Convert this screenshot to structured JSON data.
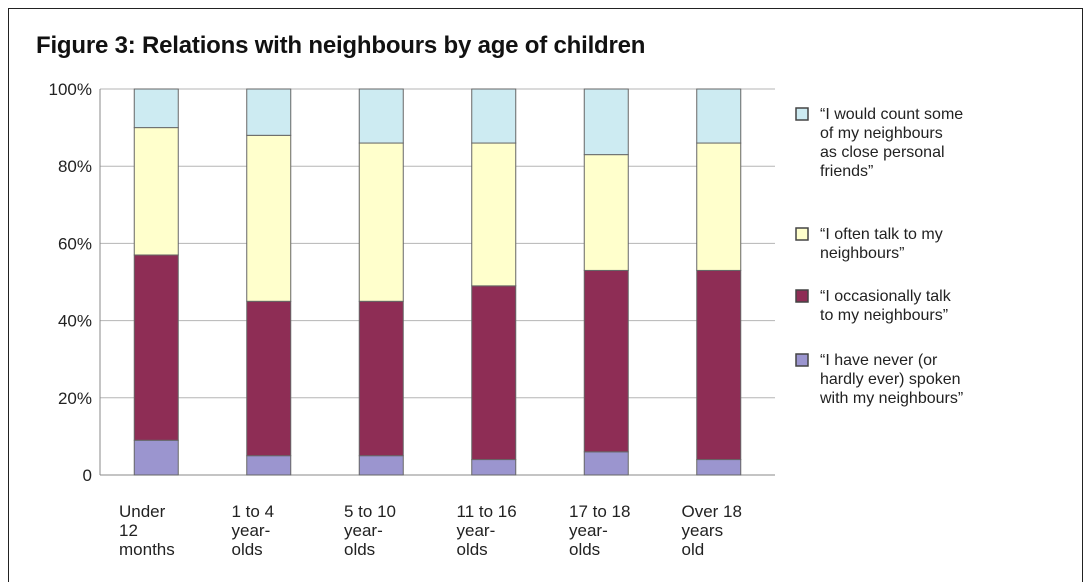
{
  "title": "Figure 3: Relations with neighbours by age of children",
  "colors": {
    "never": "#9b95cf",
    "occasionally": "#8e2d55",
    "often": "#ffffcc",
    "close_friends": "#cdebf2",
    "grid": "#b5b5b5",
    "stroke": "#666666"
  },
  "chart_data": {
    "type": "bar",
    "stacked": true,
    "categories": [
      [
        "Under",
        "12",
        "months"
      ],
      [
        "1 to 4",
        "year-",
        "olds"
      ],
      [
        "5 to 10",
        "year-",
        "olds"
      ],
      [
        "11 to 16",
        "year-",
        "olds"
      ],
      [
        "17 to 18",
        "year-",
        "olds"
      ],
      [
        "Over 18",
        "years",
        "old"
      ]
    ],
    "series": [
      {
        "key": "never",
        "name": "“I have never (or hardly ever) spoken with my neighbours”",
        "legend_lines": [
          "“I have never (or",
          "hardly ever) spoken",
          "with my neighbours”"
        ],
        "values": [
          9,
          5,
          5,
          4,
          6,
          4
        ]
      },
      {
        "key": "occasionally",
        "name": "“I occasionally talk to my neighbours”",
        "legend_lines": [
          "“I occasionally talk",
          "to my neighbours”"
        ],
        "values": [
          48,
          40,
          40,
          45,
          47,
          49
        ]
      },
      {
        "key": "often",
        "name": "“I often talk to my neighbours”",
        "legend_lines": [
          "“I often talk to my",
          "neighbours”"
        ],
        "values": [
          33,
          43,
          41,
          37,
          30,
          33
        ]
      },
      {
        "key": "close_friends",
        "name": "“I would count some of my neighbours as close personal friends”",
        "legend_lines": [
          "“I would count some",
          "of my neighbours",
          "as close personal",
          "friends”"
        ],
        "values": [
          10,
          12,
          14,
          14,
          17,
          14
        ]
      }
    ],
    "yticks": [
      "0",
      "20%",
      "40%",
      "60%",
      "80%",
      "100%"
    ],
    "ylim": [
      0,
      100
    ],
    "grid": true,
    "legend_position": "right"
  }
}
